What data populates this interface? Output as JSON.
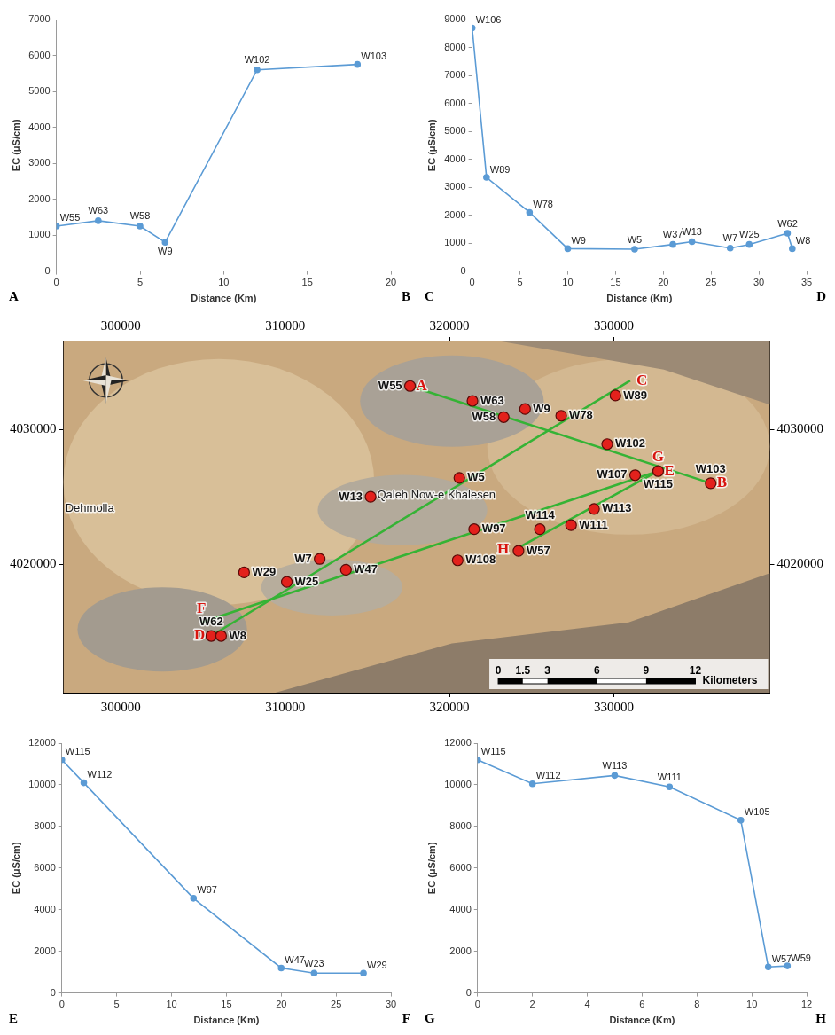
{
  "chart_data": [
    {
      "type": "line",
      "x": [
        0,
        2.5,
        5,
        6.5,
        12,
        18
      ],
      "values": [
        1250,
        1400,
        1250,
        800,
        5600,
        5750
      ],
      "point_labels": [
        "W55",
        "W63",
        "W58",
        "W9",
        "W102",
        "W103"
      ],
      "color": "#5b9bd5",
      "marker": "circle",
      "x_label": "Distance (Km)",
      "y_label": "EC (μS/cm)",
      "corner_labels": [
        "A",
        "B"
      ],
      "xlim": [
        0,
        20
      ],
      "xticks": [
        0,
        5,
        10,
        15,
        20
      ],
      "ylim": [
        0,
        7000
      ],
      "yticks": [
        0,
        1000,
        2000,
        3000,
        4000,
        5000,
        6000,
        7000
      ],
      "grid": false
    },
    {
      "type": "line",
      "x": [
        0,
        1.5,
        6,
        10,
        17,
        21,
        23,
        27,
        29,
        33,
        33.5
      ],
      "values": [
        8700,
        3350,
        2100,
        800,
        780,
        950,
        1050,
        820,
        950,
        1350,
        800
      ],
      "point_labels": [
        "W106",
        "W89",
        "W78",
        "W9",
        "W5",
        "W37",
        "W13",
        "W7",
        "W25",
        "W62",
        "W8"
      ],
      "color": "#5b9bd5",
      "marker": "circle",
      "x_label": "Distance (Km)",
      "y_label": "EC (μS/cm)",
      "corner_labels": [
        "C",
        "D"
      ],
      "xlim": [
        0,
        35
      ],
      "xticks": [
        0,
        5,
        10,
        15,
        20,
        25,
        30,
        35
      ],
      "ylim": [
        0,
        9000
      ],
      "yticks": [
        0,
        1000,
        2000,
        3000,
        4000,
        5000,
        6000,
        7000,
        8000,
        9000
      ],
      "grid": false
    },
    {
      "type": "map",
      "xlim": [
        296500,
        339500
      ],
      "xticks": [
        300000,
        310000,
        320000,
        330000
      ],
      "ylim": [
        4010500,
        4036500
      ],
      "yticks": [
        4020000,
        4030000
      ],
      "wells": {
        "color": "#e3211c",
        "marker": "circle",
        "points": [
          {
            "label": "W55",
            "x": 317600,
            "y": 4033200
          },
          {
            "label": "W63",
            "x": 321400,
            "y": 4032100
          },
          {
            "label": "W58",
            "x": 323300,
            "y": 4030900
          },
          {
            "label": "W9",
            "x": 324600,
            "y": 4031500
          },
          {
            "label": "W78",
            "x": 326800,
            "y": 4031000
          },
          {
            "label": "W89",
            "x": 330100,
            "y": 4032500
          },
          {
            "label": "W102",
            "x": 329600,
            "y": 4028900
          },
          {
            "label": "W107",
            "x": 331300,
            "y": 4026600
          },
          {
            "label": "W115",
            "x": 332700,
            "y": 4026900
          },
          {
            "label": "W103",
            "x": 335900,
            "y": 4026000
          },
          {
            "label": "W5",
            "x": 320600,
            "y": 4026400
          },
          {
            "label": "W13",
            "x": 315200,
            "y": 4025000
          },
          {
            "label": "W113",
            "x": 328800,
            "y": 4024100
          },
          {
            "label": "W97",
            "x": 321500,
            "y": 4022600
          },
          {
            "label": "W114",
            "x": 325500,
            "y": 4022600
          },
          {
            "label": "W111",
            "x": 327400,
            "y": 4022900
          },
          {
            "label": "W57",
            "x": 324200,
            "y": 4021000
          },
          {
            "label": "W108",
            "x": 320500,
            "y": 4020300
          },
          {
            "label": "W7",
            "x": 312100,
            "y": 4020400
          },
          {
            "label": "W47",
            "x": 313700,
            "y": 4019600
          },
          {
            "label": "W25",
            "x": 310100,
            "y": 4018700
          },
          {
            "label": "W29",
            "x": 307500,
            "y": 4019400
          },
          {
            "label": "W62",
            "x": 305500,
            "y": 4014700
          },
          {
            "label": "W8",
            "x": 306100,
            "y": 4014700
          }
        ]
      },
      "profiles": {
        "color": "#35b335",
        "line_style": "solid",
        "lines": [
          {
            "start": "A",
            "end": "B",
            "from": [
              317600,
              4033200
            ],
            "to": [
              335900,
              4026000
            ]
          },
          {
            "start": "C",
            "end": "D",
            "from": [
              331000,
              4033600
            ],
            "to": [
              305500,
              4014700
            ]
          },
          {
            "start": "E",
            "end": "F",
            "from": [
              332700,
              4026900
            ],
            "to": [
              304900,
              4015700
            ]
          },
          {
            "start": "G",
            "end": "H",
            "from": [
              332700,
              4026900
            ],
            "to": [
              324000,
              4021100
            ]
          }
        ]
      },
      "places": [
        {
          "label": "Qaleh Now-e Khalesen",
          "x": 319200,
          "y": 4025100
        },
        {
          "label": "Dehmolla",
          "x": 298100,
          "y": 4024100
        }
      ],
      "scale_bar": {
        "ticks": [
          0,
          1.5,
          3,
          6,
          9,
          12
        ],
        "label": "Kilometers"
      }
    },
    {
      "type": "line",
      "x": [
        0,
        2,
        12,
        20,
        23,
        27.5
      ],
      "values": [
        11200,
        10100,
        4550,
        1200,
        950,
        950
      ],
      "point_labels": [
        "W115",
        "W112",
        "W97",
        "W47",
        "W23",
        "W29"
      ],
      "color": "#5b9bd5",
      "marker": "circle",
      "x_label": "Distance (Km)",
      "y_label": "EC (μS/cm)",
      "corner_labels": [
        "E",
        "F"
      ],
      "xlim": [
        0,
        30
      ],
      "xticks": [
        0,
        5,
        10,
        15,
        20,
        25,
        30
      ],
      "ylim": [
        0,
        12000
      ],
      "yticks": [
        0,
        2000,
        4000,
        6000,
        8000,
        10000,
        12000
      ],
      "grid": false
    },
    {
      "type": "line",
      "x": [
        0,
        2,
        5,
        7,
        9.6,
        10.6,
        11.3
      ],
      "values": [
        11200,
        10050,
        10450,
        9900,
        8300,
        1250,
        1300
      ],
      "point_labels": [
        "W115",
        "W112",
        "W113",
        "W111",
        "W105",
        "W57",
        "W59"
      ],
      "color": "#5b9bd5",
      "marker": "circle",
      "x_label": "Distance (Km)",
      "y_label": "EC (μS/cm)",
      "corner_labels": [
        "G",
        "H"
      ],
      "xlim": [
        0,
        12
      ],
      "xticks": [
        0,
        2,
        4,
        6,
        8,
        10,
        12
      ],
      "ylim": [
        0,
        12000
      ],
      "yticks": [
        0,
        2000,
        4000,
        6000,
        8000,
        10000,
        12000
      ],
      "grid": false
    }
  ]
}
